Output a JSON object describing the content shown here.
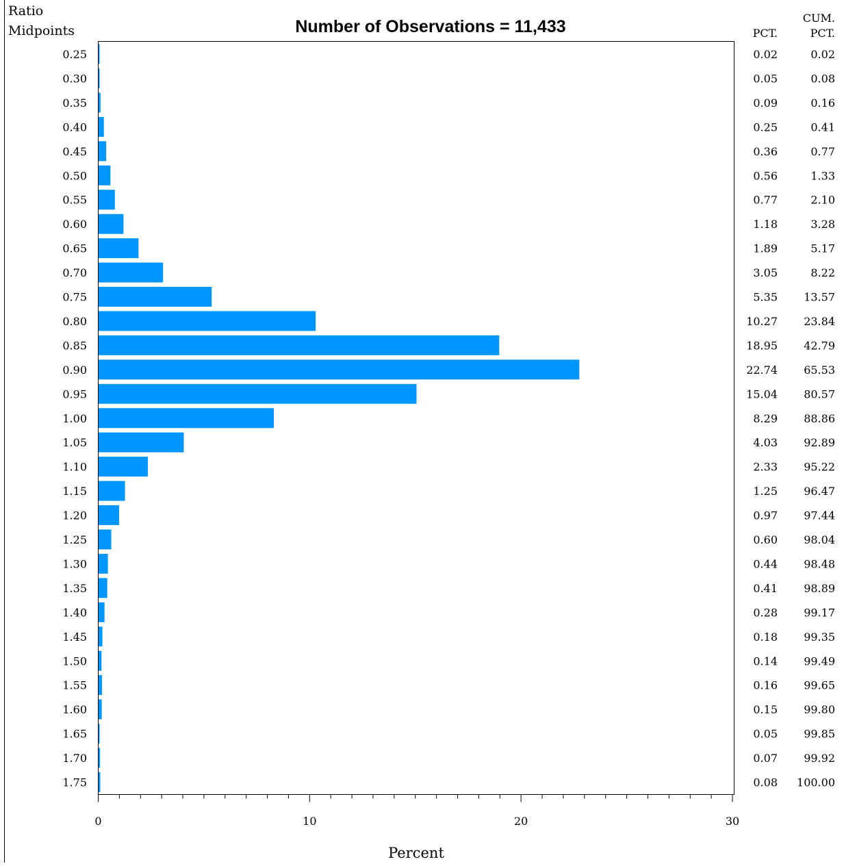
{
  "chart_data": {
    "type": "bar",
    "orientation": "horizontal",
    "title": "Number of Observations = 11,433",
    "ylabel": "Ratio Midpoints",
    "ylabel_lines": [
      "Ratio",
      "Midpoints"
    ],
    "xlabel": "Percent",
    "xlim": [
      0,
      30
    ],
    "xticks": [
      0,
      10,
      20,
      30
    ],
    "minor_tick_step": 1,
    "bar_color": "#0096ff",
    "table_headers": {
      "pct": [
        "",
        "PCT."
      ],
      "cum_pct": [
        "CUM.",
        "PCT."
      ]
    },
    "categories": [
      "0.25",
      "0.30",
      "0.35",
      "0.40",
      "0.45",
      "0.50",
      "0.55",
      "0.60",
      "0.65",
      "0.70",
      "0.75",
      "0.80",
      "0.85",
      "0.90",
      "0.95",
      "1.00",
      "1.05",
      "1.10",
      "1.15",
      "1.20",
      "1.25",
      "1.30",
      "1.35",
      "1.40",
      "1.45",
      "1.50",
      "1.55",
      "1.60",
      "1.65",
      "1.70",
      "1.75"
    ],
    "values": [
      0.02,
      0.05,
      0.09,
      0.25,
      0.36,
      0.56,
      0.77,
      1.18,
      1.89,
      3.05,
      5.35,
      10.27,
      18.95,
      22.74,
      15.04,
      8.29,
      4.03,
      2.33,
      1.25,
      0.97,
      0.6,
      0.44,
      0.41,
      0.28,
      0.18,
      0.14,
      0.16,
      0.15,
      0.05,
      0.07,
      0.08
    ],
    "pct_labels": [
      "0.02",
      "0.05",
      "0.09",
      "0.25",
      "0.36",
      "0.56",
      "0.77",
      "1.18",
      "1.89",
      "3.05",
      "5.35",
      "10.27",
      "18.95",
      "22.74",
      "15.04",
      "8.29",
      "4.03",
      "2.33",
      "1.25",
      "0.97",
      "0.60",
      "0.44",
      "0.41",
      "0.28",
      "0.18",
      "0.14",
      "0.16",
      "0.15",
      "0.05",
      "0.07",
      "0.08"
    ],
    "cum_pct_labels": [
      "0.02",
      "0.08",
      "0.16",
      "0.41",
      "0.77",
      "1.33",
      "2.10",
      "3.28",
      "5.17",
      "8.22",
      "13.57",
      "23.84",
      "42.79",
      "65.53",
      "80.57",
      "88.86",
      "92.89",
      "95.22",
      "96.47",
      "97.44",
      "98.04",
      "98.48",
      "98.89",
      "99.17",
      "99.35",
      "99.49",
      "99.65",
      "99.80",
      "99.85",
      "99.92",
      "100.00"
    ]
  }
}
